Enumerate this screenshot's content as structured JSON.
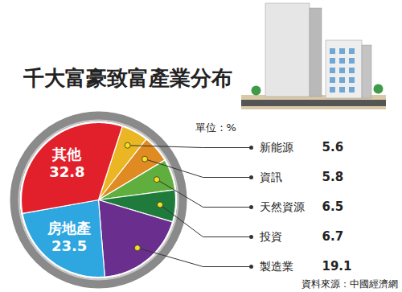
{
  "chart_data": {
    "type": "pie",
    "title": "千大富豪致富產業分布",
    "subtitle": "單位：%",
    "source": "資料來源：中國經濟網",
    "categories": [
      "新能源",
      "資訊",
      "天然資源",
      "投資",
      "製造業",
      "房地產",
      "其他"
    ],
    "values": [
      5.6,
      5.8,
      6.5,
      6.7,
      19.1,
      23.5,
      32.8
    ],
    "colors": [
      "#eab623",
      "#e08a22",
      "#5fae3e",
      "#1e7b3c",
      "#6a2e8e",
      "#2ea6e0",
      "#e2202b"
    ],
    "data_labels": true
  }
}
